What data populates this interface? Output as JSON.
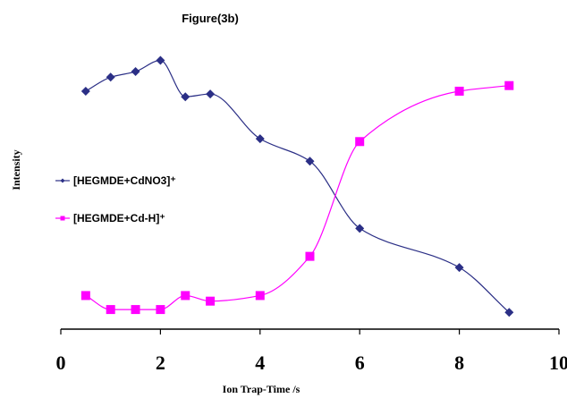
{
  "chart_data": {
    "type": "line",
    "title": "Figure(3b)",
    "xlabel": "Ion Trap-Time /s",
    "ylabel": "Intensity",
    "xlim": [
      0,
      10
    ],
    "xticks": [
      "0",
      "2",
      "4",
      "6",
      "8",
      "10"
    ],
    "ylim": [
      0,
      100
    ],
    "grid": false,
    "legend_position": "left",
    "series": [
      {
        "name": "[HEGMDE+CdNO3]⁺",
        "color": "#2b2f86",
        "marker": "diamond",
        "x": [
          0.5,
          1,
          1.5,
          2,
          2.5,
          3,
          4,
          5,
          6,
          8,
          9
        ],
        "y": [
          85,
          90,
          92,
          96,
          83,
          84,
          68,
          60,
          36,
          22,
          6
        ]
      },
      {
        "name": "[HEGMDE+Cd-H]⁺",
        "color": "#ff00ff",
        "marker": "square",
        "x": [
          0.5,
          1,
          1.5,
          2,
          2.5,
          3,
          4,
          5,
          6,
          8,
          9
        ],
        "y": [
          12,
          7,
          7,
          7,
          12,
          10,
          12,
          26,
          67,
          85,
          87
        ]
      }
    ]
  }
}
